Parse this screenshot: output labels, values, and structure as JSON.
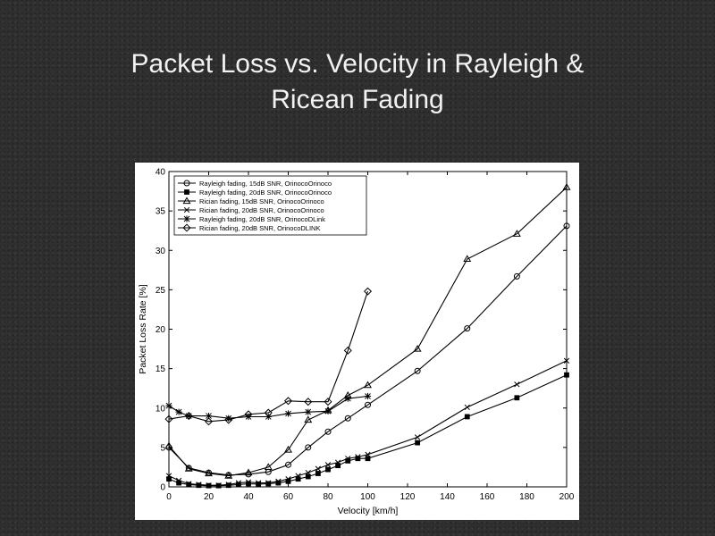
{
  "slide": {
    "title_line1": "Packet Loss vs. Velocity in Rayleigh &",
    "title_line2": "Ricean Fading"
  },
  "chart_data": {
    "type": "line",
    "xlabel": "Velocity [km/h]",
    "ylabel": "Packet Loss Rate [%]",
    "xlim": [
      0,
      200
    ],
    "ylim": [
      0,
      40
    ],
    "xticks": [
      0,
      20,
      40,
      60,
      80,
      100,
      120,
      140,
      160,
      180,
      200
    ],
    "yticks": [
      0,
      5,
      10,
      15,
      20,
      25,
      30,
      35,
      40
    ],
    "grid": false,
    "legend_position": "top-left",
    "series": [
      {
        "name": "Rayleigh fading, 15dB SNR, OrinocoOrinoco",
        "marker": "circle",
        "x": [
          0,
          10,
          20,
          30,
          40,
          50,
          60,
          70,
          80,
          90,
          100,
          125,
          150,
          175,
          200
        ],
        "y": [
          5.0,
          2.4,
          1.8,
          1.5,
          1.6,
          1.9,
          2.8,
          5.0,
          7.0,
          8.7,
          10.4,
          14.7,
          20.1,
          26.7,
          33.1
        ]
      },
      {
        "name": "Rayleigh fading, 20dB SNR, OrinocoOrinoco",
        "marker": "square",
        "x": [
          0,
          5,
          10,
          15,
          20,
          25,
          30,
          35,
          40,
          45,
          50,
          55,
          60,
          65,
          70,
          75,
          80,
          85,
          90,
          95,
          100,
          125,
          150,
          175,
          200
        ],
        "y": [
          1.0,
          0.5,
          0.3,
          0.2,
          0.15,
          0.15,
          0.2,
          0.3,
          0.4,
          0.35,
          0.4,
          0.5,
          0.7,
          1.0,
          1.3,
          1.7,
          2.2,
          2.7,
          3.3,
          3.6,
          3.6,
          5.6,
          8.9,
          11.3,
          14.2
        ]
      },
      {
        "name": "Rician fading, 15dB SNR, OrinocoOrinoco",
        "marker": "triangle",
        "x": [
          0,
          10,
          20,
          30,
          40,
          50,
          60,
          70,
          80,
          90,
          100,
          125,
          150,
          175,
          200
        ],
        "y": [
          5.2,
          2.3,
          1.7,
          1.4,
          1.8,
          2.5,
          4.7,
          8.5,
          9.7,
          11.6,
          12.9,
          17.5,
          28.9,
          32.1,
          38.0
        ]
      },
      {
        "name": "Rician fading, 20dB SNR, OrinocoOrinoco",
        "marker": "x",
        "x": [
          0,
          5,
          10,
          15,
          20,
          25,
          30,
          35,
          40,
          45,
          50,
          55,
          60,
          65,
          70,
          75,
          80,
          85,
          90,
          95,
          100,
          125,
          150,
          175,
          200
        ],
        "y": [
          1.4,
          0.8,
          0.4,
          0.3,
          0.2,
          0.2,
          0.3,
          0.5,
          0.6,
          0.5,
          0.5,
          0.7,
          1.0,
          1.4,
          1.8,
          2.3,
          2.8,
          3.1,
          3.6,
          3.8,
          4.1,
          6.3,
          10.1,
          13.0,
          16.0
        ]
      },
      {
        "name": "Rayleigh fading, 20dB SNR, OrinocoDLink",
        "marker": "star",
        "x": [
          0,
          5,
          10,
          20,
          30,
          40,
          50,
          60,
          70,
          80,
          90,
          100
        ],
        "y": [
          10.3,
          9.5,
          9.0,
          9.0,
          8.7,
          8.9,
          8.9,
          9.3,
          9.5,
          9.6,
          11.2,
          11.5
        ]
      },
      {
        "name": "Rician fading, 20dB SNR, OrinocoDLINK",
        "marker": "diamond",
        "x": [
          0,
          10,
          20,
          30,
          40,
          50,
          60,
          70,
          80,
          90,
          100
        ],
        "y": [
          8.6,
          9.0,
          8.3,
          8.5,
          9.2,
          9.4,
          10.9,
          10.8,
          10.8,
          17.3,
          24.8
        ]
      }
    ]
  }
}
